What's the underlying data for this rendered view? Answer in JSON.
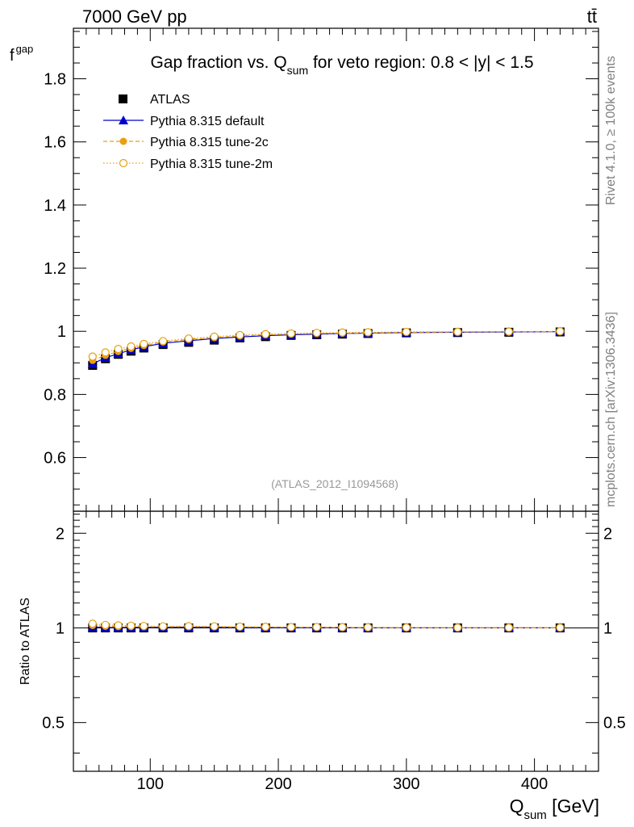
{
  "chart_data": {
    "type": "line",
    "energy_label": "7000 GeV pp",
    "process_label": "tt̄",
    "title": "Gap fraction vs. Q",
    "title_subscript": "sum",
    "title_suffix": " for veto region: 0.8 < |y| < 1.5",
    "ylabel_main": "f",
    "ylabel_main_subscript": "gap",
    "ylabel_ratio": "Ratio to ATLAS",
    "xlabel": "Q",
    "xlabel_subscript": "sum",
    "xlabel_unit": " [GeV]",
    "analysis_label": "(ATLAS_2012_I1094568)",
    "side_label_top": "Rivet 4.1.0, ≥ 100k events",
    "side_label_bottom": "mcplots.cern.ch [arXiv:1306.3436]",
    "xlim": [
      40,
      450
    ],
    "ylim_main": [
      0.43,
      1.96
    ],
    "ylim_ratio": [
      0.35,
      2.35
    ],
    "x_ticks": [
      100,
      200,
      300,
      400
    ],
    "x_tick_labels": [
      "100",
      "200",
      "300",
      "400"
    ],
    "y_ticks_main": [
      0.6,
      0.8,
      1.0,
      1.2,
      1.4,
      1.6,
      1.8
    ],
    "y_tick_labels_main": [
      "0.6",
      "0.8",
      "1",
      "1.2",
      "1.4",
      "1.6",
      "1.8"
    ],
    "y_ticks_ratio": [
      0.5,
      1,
      2
    ],
    "y_tick_labels_ratio": [
      "0.5",
      "1",
      "2"
    ],
    "x": [
      55,
      65,
      75,
      85,
      95,
      110,
      130,
      150,
      170,
      190,
      210,
      230,
      250,
      270,
      300,
      340,
      380,
      420
    ],
    "series": [
      {
        "name": "ATLAS",
        "color": "#000000",
        "values": [
          0.892,
          0.913,
          0.927,
          0.937,
          0.947,
          0.958,
          0.965,
          0.972,
          0.979,
          0.983,
          0.987,
          0.989,
          0.991,
          0.993,
          0.995,
          0.996,
          0.997,
          0.998
        ]
      },
      {
        "name": "Pythia 8.315 default",
        "color": "#0000cc",
        "values": [
          0.897,
          0.916,
          0.929,
          0.941,
          0.951,
          0.962,
          0.97,
          0.977,
          0.982,
          0.986,
          0.989,
          0.991,
          0.993,
          0.994,
          0.996,
          0.997,
          0.998,
          0.999
        ]
      },
      {
        "name": "Pythia 8.315 tune-2c",
        "color": "#e8a010",
        "values": [
          0.908,
          0.924,
          0.936,
          0.946,
          0.955,
          0.966,
          0.974,
          0.98,
          0.985,
          0.989,
          0.991,
          0.993,
          0.994,
          0.995,
          0.997,
          0.998,
          0.999,
          0.999
        ]
      },
      {
        "name": "Pythia 8.315 tune-2m",
        "color": "#e8a010",
        "values": [
          0.92,
          0.933,
          0.944,
          0.952,
          0.96,
          0.969,
          0.977,
          0.983,
          0.988,
          0.991,
          0.993,
          0.995,
          0.996,
          0.997,
          0.998,
          0.998,
          0.999,
          1.0
        ]
      }
    ]
  }
}
